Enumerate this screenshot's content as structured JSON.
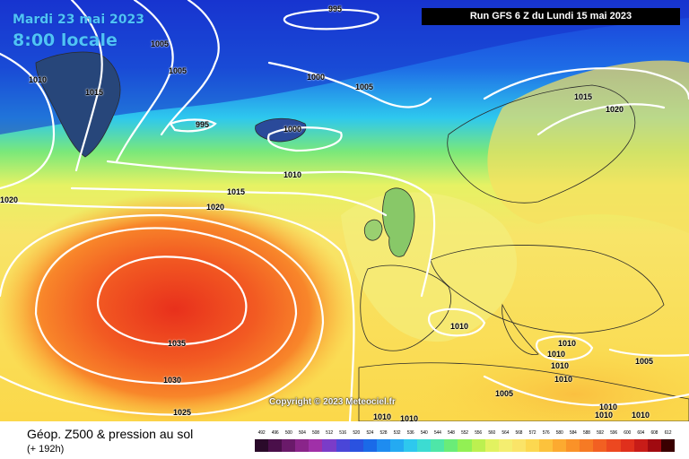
{
  "header": {
    "date": "Mardi 23 mai 2023",
    "time": "8:00 locale",
    "run": "Run GFS 6 Z du Lundi 15 mai 2023"
  },
  "copyright": "Copyright © 2023 Meteociel.fr",
  "footer": {
    "title": "Géop. Z500 & pression au sol",
    "subtitle": "(+ 192h)"
  },
  "legend": {
    "ticks": [
      "492",
      "496",
      "500",
      "504",
      "508",
      "512",
      "516",
      "520",
      "524",
      "528",
      "532",
      "536",
      "540",
      "544",
      "548",
      "552",
      "556",
      "560",
      "564",
      "568",
      "572",
      "576",
      "580",
      "584",
      "588",
      "592",
      "596",
      "600",
      "604",
      "608",
      "612"
    ],
    "colors": [
      "#2a0a2a",
      "#4a0f4a",
      "#6a1a6a",
      "#8a258a",
      "#a030a8",
      "#7a3cc8",
      "#4a46d8",
      "#2a52e0",
      "#1a6ae8",
      "#1e8cf0",
      "#24aaf2",
      "#2ec8ee",
      "#3cdcd2",
      "#4ee6a8",
      "#6aec78",
      "#92f054",
      "#bcf050",
      "#e2f260",
      "#f4ee70",
      "#fae468",
      "#fcd850",
      "#fcc23c",
      "#fcaa30",
      "#fa9228",
      "#f67a24",
      "#f26022",
      "#ec4820",
      "#e0301c",
      "#c81c18",
      "#a00a10",
      "#3a0000"
    ]
  },
  "isobars": [
    {
      "value": "995",
      "name": "isobar-label-995-north"
    },
    {
      "value": "1005",
      "name": "isobar-label-1005-nw"
    },
    {
      "value": "1005",
      "name": "isobar-label-1005-w"
    },
    {
      "value": "1010",
      "name": "isobar-label-1010-nw"
    },
    {
      "value": "1015",
      "name": "isobar-label-1015-nw"
    },
    {
      "value": "1000",
      "name": "isobar-label-1000-north"
    },
    {
      "value": "1005",
      "name": "isobar-label-1005-north"
    },
    {
      "value": "995",
      "name": "isobar-label-995-center"
    },
    {
      "value": "1000",
      "name": "isobar-label-1000-iceland"
    },
    {
      "value": "1015",
      "name": "isobar-label-1015-scandinavia"
    },
    {
      "value": "1020",
      "name": "isobar-label-1020-scandinavia"
    },
    {
      "value": "1010",
      "name": "isobar-label-1010-atlantic"
    },
    {
      "value": "1015",
      "name": "isobar-label-1015-atlantic"
    },
    {
      "value": "1020",
      "name": "isobar-label-1020-atlantic"
    },
    {
      "value": "1020",
      "name": "isobar-label-1020-west"
    },
    {
      "value": "1035",
      "name": "isobar-label-1035"
    },
    {
      "value": "1030",
      "name": "isobar-label-1030"
    },
    {
      "value": "1025",
      "name": "isobar-label-1025"
    },
    {
      "value": "1010",
      "name": "isobar-label-1010-med"
    },
    {
      "value": "1010",
      "name": "isobar-label-1010-balkans-1"
    },
    {
      "value": "1010",
      "name": "isobar-label-1010-balkans-2"
    },
    {
      "value": "1010",
      "name": "isobar-label-1010-balkans-3"
    },
    {
      "value": "1010",
      "name": "isobar-label-1010-balkans-4"
    },
    {
      "value": "1005",
      "name": "isobar-label-1005-turkey"
    },
    {
      "value": "1005",
      "name": "isobar-label-1005-africa"
    },
    {
      "value": "1010",
      "name": "isobar-label-1010-africa-1"
    },
    {
      "value": "1010",
      "name": "isobar-label-1010-africa-2"
    },
    {
      "value": "1010",
      "name": "isobar-label-1010-east-1"
    },
    {
      "value": "1010",
      "name": "isobar-label-1010-east-2"
    },
    {
      "value": "1010",
      "name": "isobar-label-1010-east-3"
    }
  ]
}
